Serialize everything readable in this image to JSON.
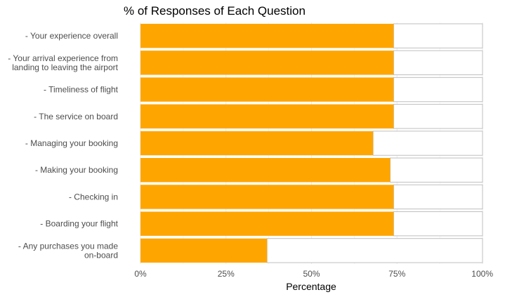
{
  "chart_data": {
    "type": "bar",
    "orientation": "horizontal",
    "stacked": "filled",
    "title": "% of Responses of Each Question",
    "xlabel": "Percentage",
    "ylabel": "",
    "xlim": [
      0,
      1
    ],
    "x_ticks": [
      "0%",
      "25%",
      "50%",
      "75%",
      "100%"
    ],
    "grid": true,
    "legend": "none",
    "colors": {
      "fill": "#FFA500",
      "remainder": "#FFFFFF",
      "outline": "#BFBFBF",
      "grid": "#EBEBEB"
    },
    "categories": [
      [
        "- Your experience overall"
      ],
      [
        "- Your arrival experience from",
        "landing to leaving the airport"
      ],
      [
        "- Timeliness of flight"
      ],
      [
        "- The service  on board"
      ],
      [
        "- Managing your booking"
      ],
      [
        "- Making your booking"
      ],
      [
        "- Checking in"
      ],
      [
        "- Boarding your flight"
      ],
      [
        "- Any purchases you made",
        "on-board"
      ]
    ],
    "values": [
      0.74,
      0.74,
      0.74,
      0.74,
      0.68,
      0.73,
      0.74,
      0.74,
      0.37
    ]
  }
}
